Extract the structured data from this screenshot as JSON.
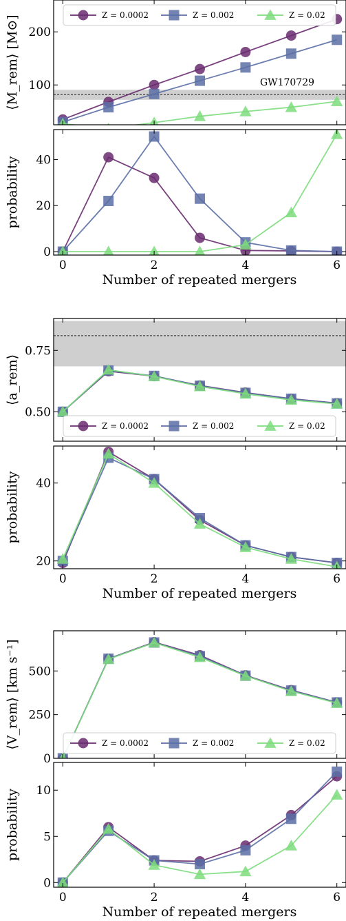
{
  "colors": {
    "z0002": "#6a2c70",
    "z002": "#5b6fa5",
    "z02": "#7ddc7d",
    "band": "#cfcfcf"
  },
  "legend_labels": [
    "Z = 0.0002",
    "Z = 0.002",
    "Z = 0.02"
  ],
  "chart_data": [
    {
      "type": "line",
      "ylabel": "⟨M_rem⟩ [M⊙]",
      "x": [
        0,
        1,
        2,
        3,
        4,
        5,
        6
      ],
      "xlim": [
        -0.2,
        6.2
      ],
      "ylim": [
        25,
        260
      ],
      "yticks": [
        100,
        200
      ],
      "ytick_labels": [
        "100",
        "200"
      ],
      "band": [
        72,
        91
      ],
      "dashed_line": 82,
      "annotation": "GW170729",
      "legend": "top",
      "series": [
        {
          "name": "Z = 0.0002",
          "marker": "circle",
          "values": [
            35,
            68,
            100,
            130,
            162,
            193,
            224
          ]
        },
        {
          "name": "Z = 0.002",
          "marker": "square",
          "values": [
            30,
            58,
            83,
            108,
            133,
            159,
            185
          ]
        },
        {
          "name": "Z = 0.02",
          "marker": "triangle",
          "values": [
            27,
            18,
            29,
            41,
            50,
            58,
            69
          ]
        }
      ]
    },
    {
      "type": "line",
      "ylabel": "probability",
      "xlabel": "Number of repeated mergers",
      "x": [
        0,
        1,
        2,
        3,
        4,
        5,
        6
      ],
      "xlim": [
        -0.2,
        6.2
      ],
      "ylim": [
        -1.5,
        53
      ],
      "yticks": [
        0,
        20,
        40
      ],
      "ytick_labels": [
        "0",
        "20",
        "40"
      ],
      "xticks": [
        0,
        2,
        4,
        6
      ],
      "xtick_labels": [
        "0",
        "2",
        "4",
        "6"
      ],
      "series": [
        {
          "name": "Z = 0.0002",
          "marker": "circle",
          "values": [
            0,
            41,
            32,
            6,
            0.5,
            0.3,
            0
          ]
        },
        {
          "name": "Z = 0.002",
          "marker": "square",
          "values": [
            0,
            22,
            50,
            23,
            4,
            0.5,
            0
          ]
        },
        {
          "name": "Z = 0.02",
          "marker": "triangle",
          "values": [
            0,
            0,
            0,
            0,
            3,
            17,
            51
          ]
        }
      ]
    },
    {
      "type": "line",
      "ylabel": "⟨a_rem⟩",
      "x": [
        0,
        1,
        2,
        3,
        4,
        5,
        6
      ],
      "xlim": [
        -0.2,
        6.2
      ],
      "ylim": [
        0.38,
        0.88
      ],
      "yticks": [
        0.5,
        0.75
      ],
      "ytick_labels": [
        "0.50",
        "0.75"
      ],
      "band": [
        0.685,
        0.87
      ],
      "dashed_line": 0.81,
      "legend": "bottom",
      "series": [
        {
          "name": "Z = 0.0002",
          "marker": "circle",
          "values": [
            0.5,
            0.665,
            0.645,
            0.607,
            0.578,
            0.553,
            0.535
          ]
        },
        {
          "name": "Z = 0.002",
          "marker": "square",
          "values": [
            0.5,
            0.668,
            0.646,
            0.606,
            0.577,
            0.553,
            0.534
          ]
        },
        {
          "name": "Z = 0.02",
          "marker": "triangle",
          "values": [
            0.5,
            0.671,
            0.644,
            0.603,
            0.573,
            0.548,
            0.532
          ]
        }
      ]
    },
    {
      "type": "line",
      "ylabel": "probability",
      "xlabel": "Number of repeated mergers",
      "x": [
        0,
        1,
        2,
        3,
        4,
        5,
        6
      ],
      "xlim": [
        -0.2,
        6.2
      ],
      "ylim": [
        18,
        49.5
      ],
      "yticks": [
        20,
        40
      ],
      "ytick_labels": [
        "20",
        "40"
      ],
      "xticks": [
        0,
        2,
        4,
        6
      ],
      "xtick_labels": [
        "0",
        "2",
        "4",
        "6"
      ],
      "series": [
        {
          "name": "Z = 0.0002",
          "marker": "circle",
          "values": [
            19.5,
            48.0,
            41.0,
            30.5,
            24.0,
            21.0,
            19.5
          ]
        },
        {
          "name": "Z = 0.002",
          "marker": "square",
          "values": [
            20.0,
            46.5,
            41.0,
            31.0,
            24.0,
            21.0,
            19.5
          ]
        },
        {
          "name": "Z = 0.02",
          "marker": "triangle",
          "values": [
            20.5,
            47.5,
            40.0,
            29.5,
            23.5,
            20.5,
            18.5
          ]
        }
      ]
    },
    {
      "type": "line",
      "ylabel": "⟨V_rem⟩ [km s⁻¹]",
      "x": [
        0,
        1,
        2,
        3,
        4,
        5,
        6
      ],
      "xlim": [
        -0.2,
        6.2
      ],
      "ylim": [
        0,
        730
      ],
      "yticks": [
        0,
        250,
        500
      ],
      "ytick_labels": [
        "0",
        "250",
        "500"
      ],
      "legend": "bottom",
      "series": [
        {
          "name": "Z = 0.0002",
          "marker": "circle",
          "values": [
            0,
            570,
            665,
            590,
            475,
            390,
            320
          ]
        },
        {
          "name": "Z = 0.002",
          "marker": "square",
          "values": [
            0,
            570,
            663,
            585,
            473,
            388,
            320
          ]
        },
        {
          "name": "Z = 0.02",
          "marker": "triangle",
          "values": [
            0,
            567,
            662,
            578,
            472,
            384,
            316
          ]
        }
      ]
    },
    {
      "type": "line",
      "ylabel": "probability",
      "xlabel": "Number of repeated mergers",
      "x": [
        0,
        1,
        2,
        3,
        4,
        5,
        6
      ],
      "xlim": [
        -0.2,
        6.2
      ],
      "ylim": [
        -0.5,
        13
      ],
      "yticks": [
        0,
        5,
        10
      ],
      "ytick_labels": [
        "0",
        "5",
        "10"
      ],
      "xticks": [
        0,
        2,
        4,
        6
      ],
      "xtick_labels": [
        "0",
        "2",
        "4",
        "6"
      ],
      "series": [
        {
          "name": "Z = 0.0002",
          "marker": "circle",
          "values": [
            0,
            6.0,
            2.4,
            2.3,
            4.0,
            7.3,
            11.5
          ]
        },
        {
          "name": "Z = 0.002",
          "marker": "square",
          "values": [
            0,
            5.6,
            2.4,
            2.0,
            3.5,
            6.9,
            12.0
          ]
        },
        {
          "name": "Z = 0.02",
          "marker": "triangle",
          "values": [
            0,
            5.8,
            1.9,
            0.9,
            1.2,
            4.0,
            9.5
          ]
        }
      ]
    }
  ]
}
